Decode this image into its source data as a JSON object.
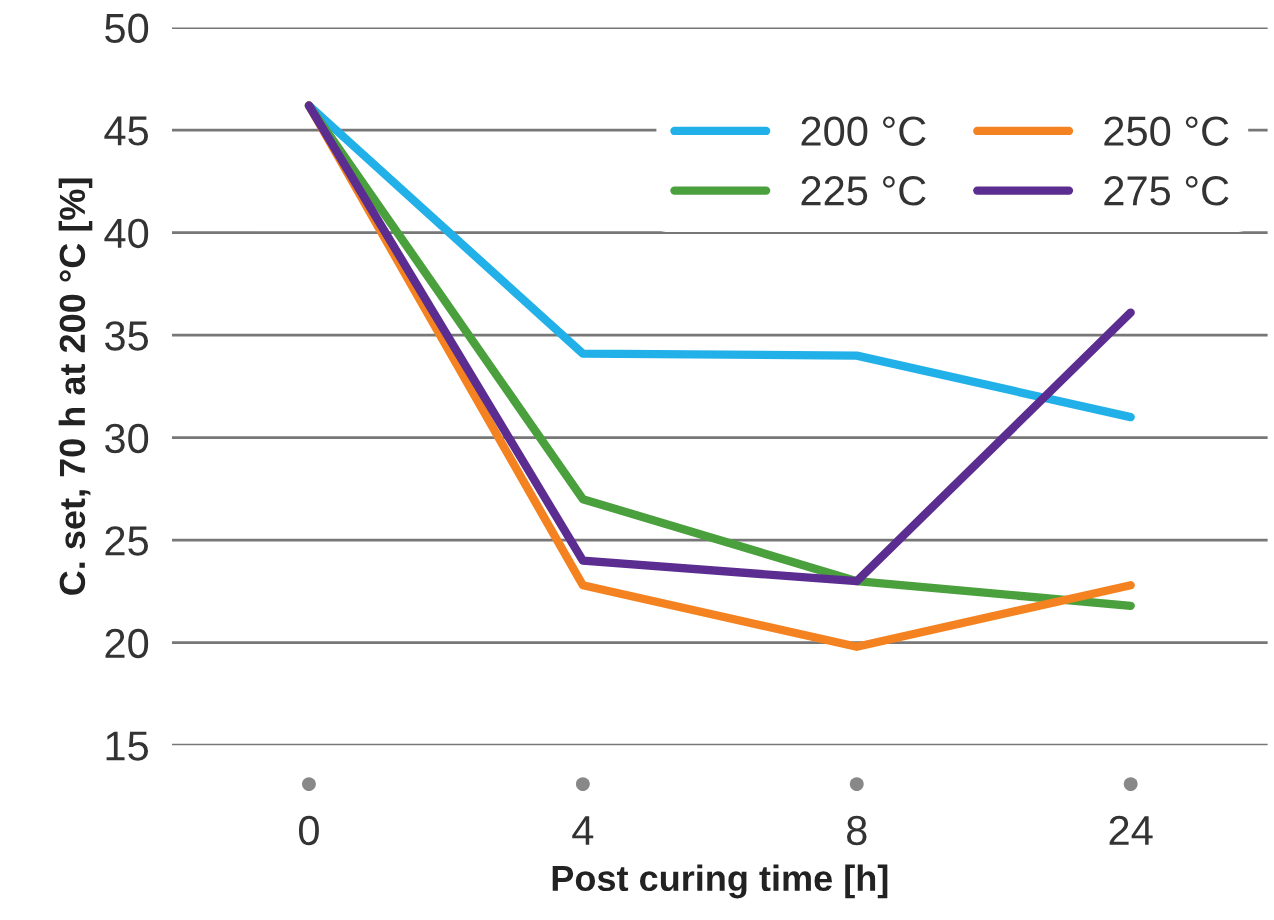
{
  "chart_data": {
    "type": "line",
    "xlabel": "Post curing time [h]",
    "ylabel": "C. set, 70 h at 200 °C [%]",
    "categories": [
      "0",
      "4",
      "8",
      "24"
    ],
    "series": [
      {
        "name": "200 °C",
        "color": "#22b0e8",
        "values": [
          46.2,
          34.1,
          34.0,
          31.0
        ]
      },
      {
        "name": "225 °C",
        "color": "#4aa03c",
        "values": [
          46.2,
          27.0,
          23.0,
          21.8
        ]
      },
      {
        "name": "250 °C",
        "color": "#f58220",
        "values": [
          46.2,
          22.8,
          19.8,
          22.8
        ]
      },
      {
        "name": "275 °C",
        "color": "#5c2d91",
        "values": [
          46.2,
          24.0,
          23.0,
          36.1
        ]
      }
    ],
    "ylim": [
      15,
      50
    ],
    "yticks": [
      15,
      20,
      25,
      30,
      35,
      40,
      45,
      50
    ],
    "grid": "y",
    "legend": "top right",
    "marker": "none",
    "line_style": "solid"
  }
}
